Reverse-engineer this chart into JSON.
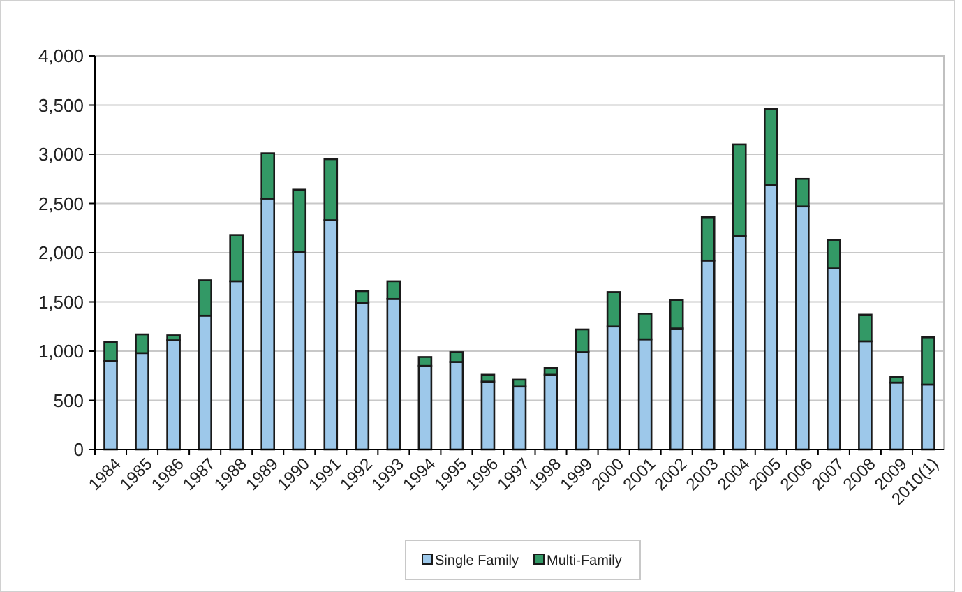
{
  "chart_data": {
    "type": "bar",
    "stacked": true,
    "categories": [
      "1984",
      "1985",
      "1986",
      "1987",
      "1988",
      "1989",
      "1990",
      "1991",
      "1992",
      "1993",
      "1994",
      "1995",
      "1996",
      "1997",
      "1998",
      "1999",
      "2000",
      "2001",
      "2002",
      "2003",
      "2004",
      "2005",
      "2006",
      "2007",
      "2008",
      "2009",
      "2010(1)"
    ],
    "series": [
      {
        "name": "Single Family",
        "color": "#9dc8ea",
        "values": [
          900,
          980,
          1110,
          1360,
          1710,
          2550,
          2010,
          2330,
          1490,
          1530,
          850,
          890,
          690,
          640,
          760,
          990,
          1250,
          1120,
          1230,
          1920,
          2170,
          2690,
          2470,
          1840,
          1100,
          680,
          660
        ]
      },
      {
        "name": "Multi-Family",
        "color": "#339966",
        "values": [
          190,
          190,
          50,
          360,
          470,
          460,
          630,
          620,
          120,
          180,
          90,
          100,
          70,
          70,
          70,
          230,
          350,
          260,
          290,
          440,
          930,
          770,
          280,
          290,
          270,
          60,
          480
        ]
      }
    ],
    "ylim": [
      0,
      4000
    ],
    "yticks": [
      {
        "value": 0,
        "label": "0"
      },
      {
        "value": 500,
        "label": "500"
      },
      {
        "value": 1000,
        "label": "1,000"
      },
      {
        "value": 1500,
        "label": "1,500"
      },
      {
        "value": 2000,
        "label": "2,000"
      },
      {
        "value": 2500,
        "label": "2,500"
      },
      {
        "value": 3000,
        "label": "3,000"
      },
      {
        "value": 3500,
        "label": "3,500"
      },
      {
        "value": 4000,
        "label": "4,000"
      }
    ],
    "grid": "y",
    "legend": "bottom"
  }
}
